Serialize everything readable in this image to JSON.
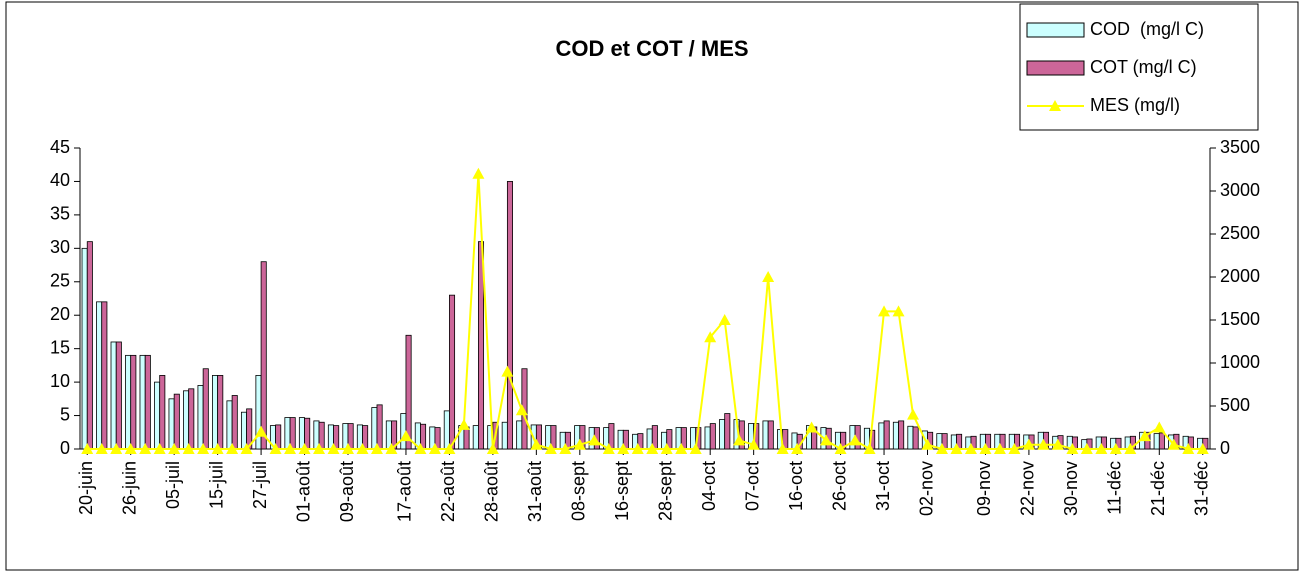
{
  "chart_data": {
    "type": "bar-line",
    "title": "COD et COT / MES",
    "categories": [
      "20-juin",
      null,
      null,
      "26-juin",
      null,
      null,
      "05-juil",
      null,
      null,
      "15-juil",
      null,
      null,
      "27-juil",
      null,
      null,
      "01-août",
      null,
      null,
      "09-août",
      null,
      null,
      null,
      "17-août",
      null,
      null,
      "22-août",
      null,
      null,
      "28-août",
      null,
      null,
      "31-août",
      null,
      null,
      "08-sept",
      null,
      null,
      "16-sept",
      null,
      null,
      "28-sept",
      null,
      null,
      "04-oct",
      null,
      null,
      "07-oct",
      null,
      null,
      "16-oct",
      null,
      null,
      "26-oct",
      null,
      null,
      "31-oct",
      null,
      null,
      "02-nov",
      null,
      null,
      null,
      "09-nov",
      null,
      null,
      "22-nov",
      null,
      null,
      "30-nov",
      null,
      null,
      "11-déc",
      null,
      null,
      "21-déc",
      null,
      null,
      "31-déc"
    ],
    "series": [
      {
        "name": "COD  (mg/l C)",
        "color": "#ccffff",
        "kind": "bar",
        "values": [
          30,
          22,
          16,
          14,
          14,
          10,
          7.5,
          8.7,
          9.5,
          11,
          7.2,
          5.5,
          11,
          3.5,
          4.7,
          4.7,
          4.2,
          3.6,
          3.8,
          3.6,
          6.2,
          4.2,
          5.3,
          3.9,
          3.3,
          5.7,
          3.5,
          3.5,
          3.5,
          4,
          4.2,
          3.6,
          3.5,
          2.5,
          3.5,
          3.2,
          3.2,
          2.8,
          2.2,
          3,
          2.5,
          3.2,
          3.2,
          3.3,
          4.4,
          4.4,
          3.8,
          4.2,
          2.9,
          2.4,
          3.5,
          3.2,
          2.5,
          3.5,
          3.1,
          3.9,
          4,
          3.4,
          2.7,
          2.3,
          2.1,
          1.8,
          2.2,
          2.2,
          2.2,
          2.1,
          2.5,
          1.9,
          1.9,
          1.4,
          1.8,
          1.6,
          1.8,
          2.5,
          2.3,
          2.1,
          1.9,
          1.6
        ]
      },
      {
        "name": "COT (mg/l C)",
        "color": "#cc6699",
        "kind": "bar",
        "values": [
          31,
          22,
          16,
          14,
          14,
          11,
          8.2,
          9,
          12,
          11,
          8,
          6,
          28,
          3.6,
          4.7,
          4.6,
          4,
          3.5,
          3.8,
          3.5,
          6.6,
          4.2,
          17,
          3.7,
          3.2,
          23,
          3.3,
          31,
          4,
          40,
          12,
          3.6,
          3.5,
          2.5,
          3.5,
          3.2,
          3.8,
          2.8,
          2.3,
          3.5,
          2.9,
          3.2,
          3.2,
          3.8,
          5.3,
          4.2,
          3.8,
          4.2,
          2.9,
          2.2,
          3.3,
          3.1,
          2.5,
          3.5,
          2.8,
          4.2,
          4.2,
          3.3,
          2.5,
          2.3,
          2.2,
          1.9,
          2.2,
          2.2,
          2.2,
          2.1,
          2.5,
          2,
          1.8,
          1.5,
          1.8,
          1.6,
          1.9,
          2.5,
          2.4,
          2.2,
          1.8,
          1.6
        ]
      },
      {
        "name": "MES (mg/l)",
        "color": "#ffff00",
        "kind": "line",
        "axis": "y2",
        "values": [
          0,
          0,
          0,
          0,
          0,
          0,
          0,
          0,
          0,
          0,
          0,
          0,
          200,
          0,
          0,
          0,
          0,
          0,
          0,
          0,
          0,
          0,
          150,
          0,
          0,
          0,
          280,
          3200,
          0,
          900,
          450,
          50,
          0,
          0,
          50,
          100,
          0,
          0,
          0,
          0,
          0,
          0,
          0,
          1300,
          1500,
          100,
          50,
          2000,
          0,
          0,
          250,
          100,
          0,
          100,
          0,
          1600,
          1600,
          400,
          50,
          0,
          0,
          0,
          0,
          0,
          0,
          50,
          50,
          50,
          0,
          0,
          0,
          0,
          0,
          150,
          250,
          50,
          0,
          0
        ]
      }
    ],
    "ylim": [
      0,
      45
    ],
    "yticks": [
      0,
      5,
      10,
      15,
      20,
      25,
      30,
      35,
      40,
      45
    ],
    "y2lim": [
      0,
      3500
    ],
    "y2ticks": [
      0,
      500,
      1000,
      1500,
      2000,
      2500,
      3000,
      3500
    ],
    "grid": false
  }
}
